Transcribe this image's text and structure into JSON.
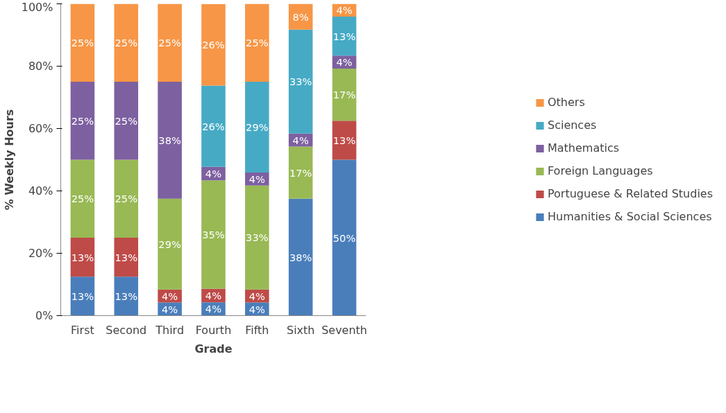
{
  "chart_data": {
    "type": "bar",
    "stacked": true,
    "xlabel": "Grade",
    "ylabel": "% Weekly Hours",
    "categories": [
      "First",
      "Second",
      "Third",
      "Fourth",
      "Fifth",
      "Sixth",
      "Seventh"
    ],
    "ylim": [
      0,
      100
    ],
    "yticks": [
      {
        "value": 0,
        "label": "0%"
      },
      {
        "value": 20,
        "label": "20%"
      },
      {
        "value": 40,
        "label": "40%"
      },
      {
        "value": 60,
        "label": "60%"
      },
      {
        "value": 80,
        "label": "80%"
      },
      {
        "value": 100,
        "label": "100%"
      }
    ],
    "grid": false,
    "legend": "right",
    "series": [
      {
        "name": "Humanities & Social Sciences",
        "color": "#4a7ebb",
        "values": [
          12.5,
          12.5,
          4.2,
          4.3,
          4.2,
          37.5,
          50
        ],
        "value_labels": [
          "13%",
          "13%",
          "4%",
          "4%",
          "4%",
          "38%",
          "50%"
        ]
      },
      {
        "name": "Portuguese & Related Studies",
        "color": "#be4b48",
        "values": [
          12.5,
          12.5,
          4.2,
          4.3,
          4.2,
          0,
          12.5
        ],
        "value_labels": [
          "13%",
          "13%",
          "4%",
          "4%",
          "4%",
          null,
          "13%"
        ]
      },
      {
        "name": "Foreign Languages",
        "color": "#98b954",
        "values": [
          25,
          25,
          29.1,
          34.8,
          33.3,
          16.7,
          16.7
        ],
        "value_labels": [
          "25%",
          "25%",
          "29%",
          "35%",
          "33%",
          "17%",
          "17%"
        ]
      },
      {
        "name": "Mathematics",
        "color": "#7d60a0",
        "values": [
          25,
          25,
          37.5,
          4.3,
          4.2,
          4.2,
          4.2
        ],
        "value_labels": [
          "25%",
          "25%",
          "38%",
          "4%",
          "4%",
          "4%",
          "4%"
        ]
      },
      {
        "name": "Sciences",
        "color": "#46aac5",
        "values": [
          0,
          0,
          0,
          26.1,
          29.1,
          33.3,
          12.5
        ],
        "value_labels": [
          null,
          null,
          null,
          "26%",
          "29%",
          "33%",
          "13%"
        ]
      },
      {
        "name": "Others",
        "color": "#f79646",
        "values": [
          25,
          25,
          25,
          26.1,
          25,
          8.3,
          4.1
        ],
        "value_labels": [
          "25%",
          "25%",
          "25%",
          "26%",
          "25%",
          "8%",
          "4%"
        ]
      }
    ]
  }
}
